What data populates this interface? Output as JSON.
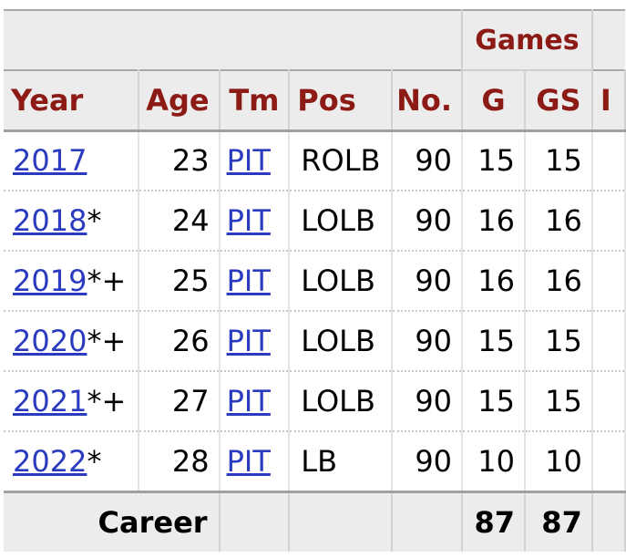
{
  "group_header": {
    "games": "Games"
  },
  "columns": [
    {
      "key": "year",
      "label": "Year"
    },
    {
      "key": "age",
      "label": "Age"
    },
    {
      "key": "tm",
      "label": "Tm"
    },
    {
      "key": "pos",
      "label": "Pos"
    },
    {
      "key": "no",
      "label": "No."
    },
    {
      "key": "g",
      "label": "G"
    },
    {
      "key": "gs",
      "label": "GS"
    },
    {
      "key": "next",
      "label": "I"
    }
  ],
  "rows": [
    {
      "year": "2017",
      "suffix": "",
      "age": "23",
      "tm": "PIT",
      "pos": "ROLB",
      "no": "90",
      "g": "15",
      "gs": "15"
    },
    {
      "year": "2018",
      "suffix": "*",
      "age": "24",
      "tm": "PIT",
      "pos": "LOLB",
      "no": "90",
      "g": "16",
      "gs": "16"
    },
    {
      "year": "2019",
      "suffix": "*+",
      "age": "25",
      "tm": "PIT",
      "pos": "LOLB",
      "no": "90",
      "g": "16",
      "gs": "16"
    },
    {
      "year": "2020",
      "suffix": "*+",
      "age": "26",
      "tm": "PIT",
      "pos": "LOLB",
      "no": "90",
      "g": "15",
      "gs": "15"
    },
    {
      "year": "2021",
      "suffix": "*+",
      "age": "27",
      "tm": "PIT",
      "pos": "LOLB",
      "no": "90",
      "g": "15",
      "gs": "15"
    },
    {
      "year": "2022",
      "suffix": "*",
      "age": "28",
      "tm": "PIT",
      "pos": "LB",
      "no": "90",
      "g": "10",
      "gs": "10"
    }
  ],
  "career": {
    "label": "Career",
    "g": "87",
    "gs": "87"
  },
  "colors": {
    "header_text": "#8c1b16",
    "link": "#2b3bbf",
    "header_bg": "#ececec"
  }
}
